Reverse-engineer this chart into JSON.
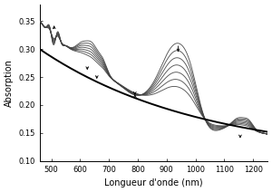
{
  "title": "",
  "xlabel": "Longueur d'onde (nm)",
  "ylabel": "Absorption",
  "xlim": [
    460,
    1250
  ],
  "ylim": [
    0.1,
    0.38
  ],
  "yticks": [
    0.1,
    0.15,
    0.2,
    0.25,
    0.3,
    0.35
  ],
  "xticks": [
    500,
    600,
    700,
    800,
    900,
    1000,
    1100,
    1200
  ],
  "n_curves": 7,
  "line_color": "#444444",
  "bold_line_color": "#000000",
  "arrow_color": "#000000"
}
